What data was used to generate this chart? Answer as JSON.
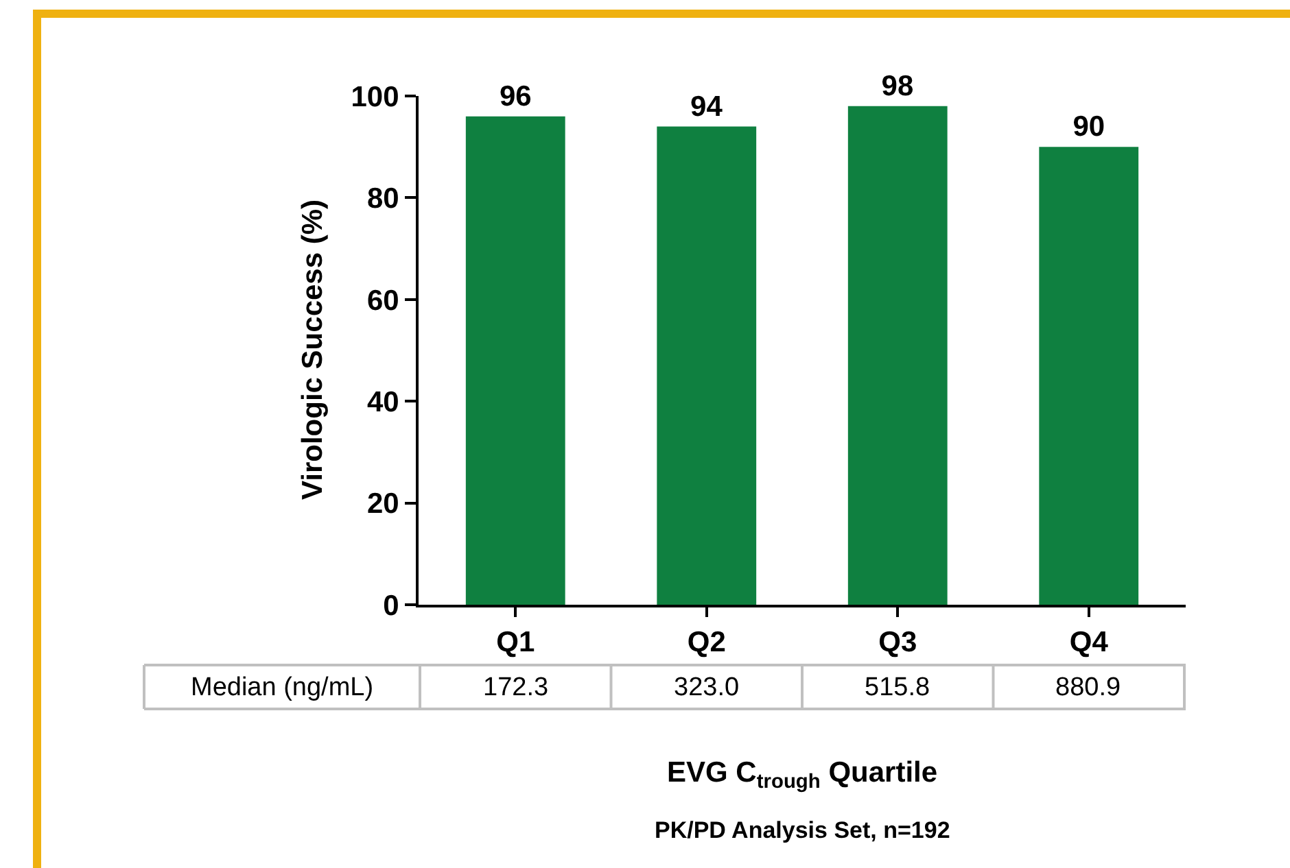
{
  "chart_data": {
    "type": "bar",
    "ylabel": "Virologic Success (%)",
    "xlabel": "EVG C$_{trough}$ Quartile",
    "categories": [
      "Q1",
      "Q2",
      "Q3",
      "Q4"
    ],
    "values": [
      96,
      94,
      98,
      90
    ],
    "color": "#0f8040",
    "ylim": [
      0,
      100
    ],
    "yticks": [
      0,
      20,
      40,
      60,
      80,
      100
    ],
    "data_labels": true,
    "annotations": [
      "Median (ng/mL)",
      "172.3",
      "323.0",
      "515.8",
      "880.9",
      "PK/PD Analysis Set, n=192"
    ]
  }
}
